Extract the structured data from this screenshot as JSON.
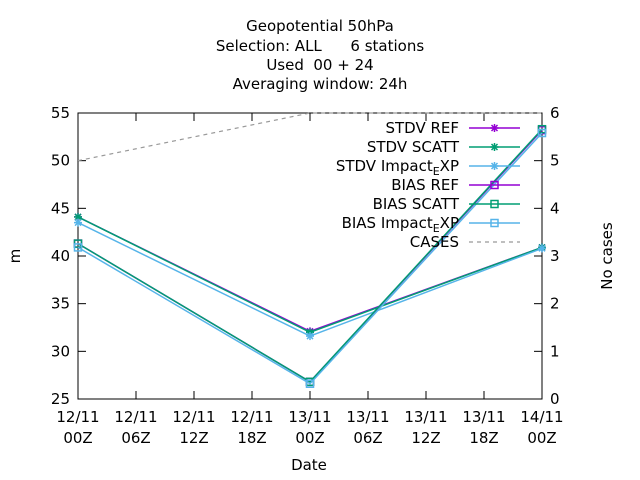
{
  "chart_data": {
    "type": "line",
    "title_lines": [
      "Geopotential 50hPa",
      "Selection: ALL      6 stations",
      "Used  00 + 24",
      "Averaging window: 24h"
    ],
    "xlabel": "Date",
    "ylabel": "m",
    "y2label": "No cases",
    "x_ticks": [
      {
        "top": "12/11",
        "bottom": "00Z"
      },
      {
        "top": "12/11",
        "bottom": "06Z"
      },
      {
        "top": "12/11",
        "bottom": "12Z"
      },
      {
        "top": "12/11",
        "bottom": "18Z"
      },
      {
        "top": "13/11",
        "bottom": "00Z"
      },
      {
        "top": "13/11",
        "bottom": "06Z"
      },
      {
        "top": "13/11",
        "bottom": "12Z"
      },
      {
        "top": "13/11",
        "bottom": "18Z"
      },
      {
        "top": "14/11",
        "bottom": "00Z"
      }
    ],
    "xlim": [
      0,
      48
    ],
    "ylim": [
      25,
      55
    ],
    "y_ticks": [
      25,
      30,
      35,
      40,
      45,
      50,
      55
    ],
    "y2lim": [
      0,
      6
    ],
    "y2_ticks": [
      0,
      1,
      2,
      3,
      4,
      5,
      6
    ],
    "grid": false,
    "legend_position": "top-right",
    "series": [
      {
        "name": "STDV REF",
        "axis": "y1",
        "color": "#9400d3",
        "marker": "star",
        "dash": "",
        "x": [
          0,
          24,
          48
        ],
        "y": [
          44.1,
          32.1,
          40.9
        ]
      },
      {
        "name": "STDV SCATT",
        "axis": "y1",
        "color": "#009e73",
        "marker": "star",
        "dash": "",
        "x": [
          0,
          24,
          48
        ],
        "y": [
          44.1,
          32.0,
          40.9
        ]
      },
      {
        "name": "STDV Impact_EXP",
        "axis": "y1",
        "color": "#56b4e9",
        "marker": "star",
        "dash": "",
        "x": [
          0,
          24,
          48
        ],
        "y": [
          43.5,
          31.6,
          40.8
        ]
      },
      {
        "name": "BIAS REF",
        "axis": "y1",
        "color": "#9400d3",
        "marker": "square",
        "dash": "",
        "x": [
          0,
          24,
          48
        ],
        "y": [
          41.3,
          26.8,
          53.2
        ]
      },
      {
        "name": "BIAS SCATT",
        "axis": "y1",
        "color": "#009e73",
        "marker": "square",
        "dash": "",
        "x": [
          0,
          24,
          48
        ],
        "y": [
          41.3,
          26.8,
          53.3
        ]
      },
      {
        "name": "BIAS Impact_EXP",
        "axis": "y1",
        "color": "#56b4e9",
        "marker": "square",
        "dash": "",
        "x": [
          0,
          24,
          48
        ],
        "y": [
          40.9,
          26.6,
          52.9
        ]
      },
      {
        "name": "CASES",
        "axis": "y2",
        "color": "#999999",
        "marker": "none",
        "dash": "4,4",
        "x": [
          0,
          24,
          48
        ],
        "y": [
          5,
          6,
          6
        ]
      }
    ]
  }
}
